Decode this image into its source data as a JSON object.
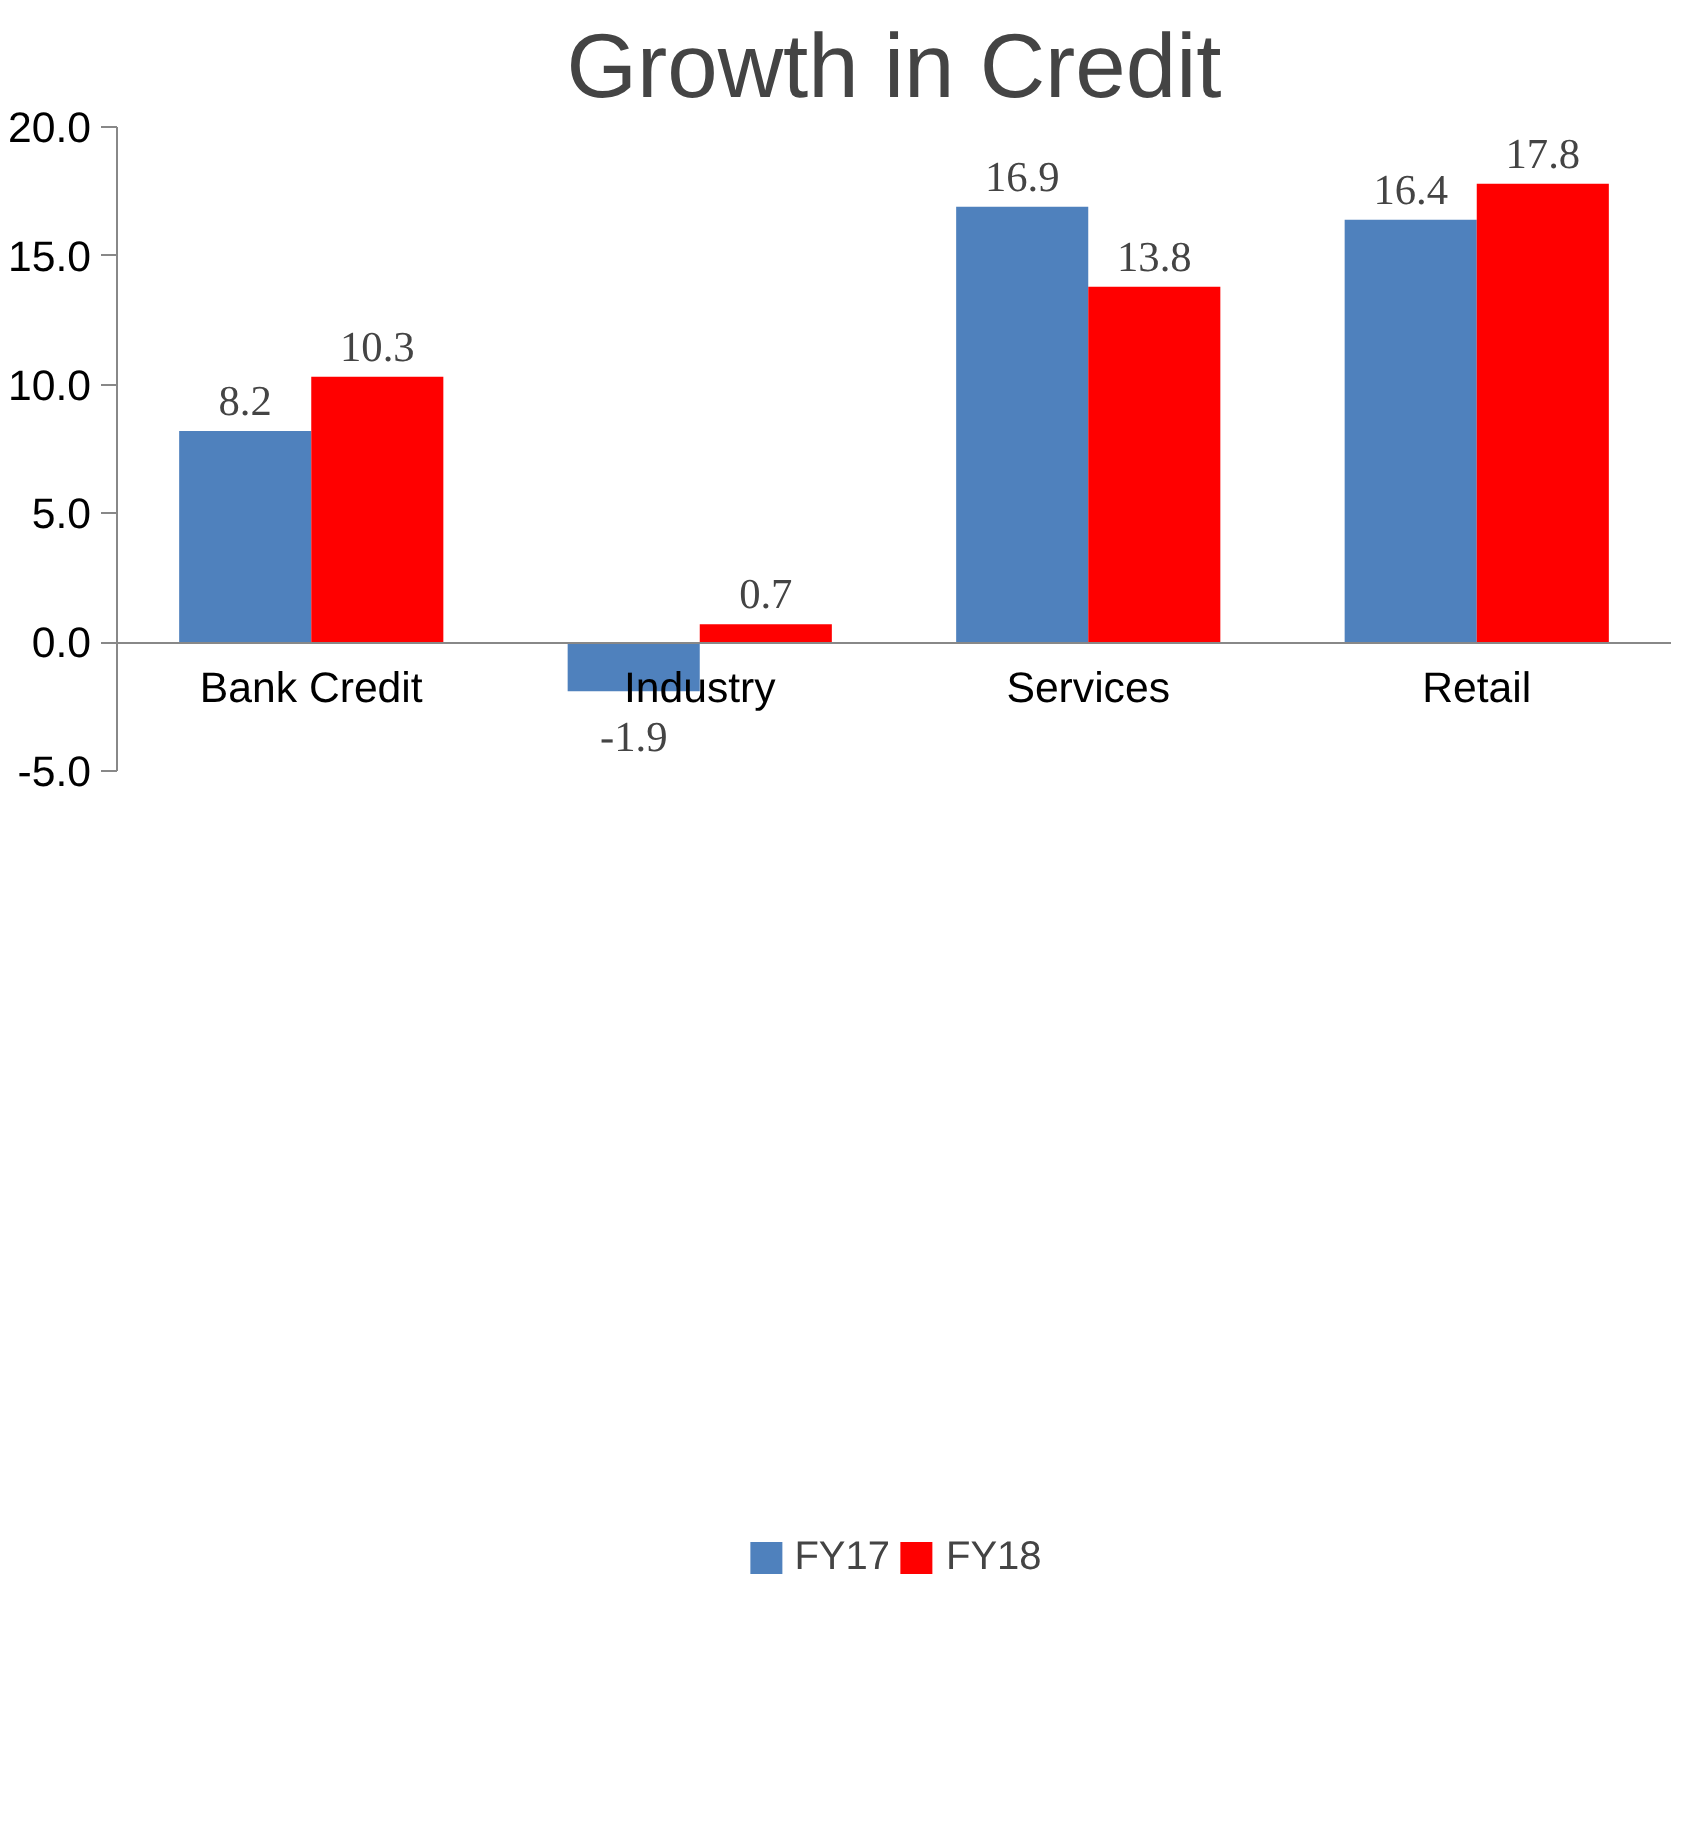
{
  "chart_data": {
    "type": "bar",
    "title": "Growth in Credit",
    "categories": [
      "Bank Credit",
      "Industry",
      "Services",
      "Retail"
    ],
    "series": [
      {
        "name": "FY17",
        "color": "#4f81bd",
        "values": [
          8.2,
          -1.9,
          16.9,
          16.4
        ]
      },
      {
        "name": "FY18",
        "color": "#ff0000",
        "values": [
          10.3,
          0.7,
          13.8,
          17.8
        ]
      }
    ],
    "ylim": [
      -5,
      20
    ],
    "yticks": [
      {
        "value": -5,
        "label": "-5.0"
      },
      {
        "value": 0,
        "label": "0.0"
      },
      {
        "value": 5,
        "label": "5.0"
      },
      {
        "value": 10,
        "label": "10.0"
      },
      {
        "value": 15,
        "label": "15.0"
      },
      {
        "value": 20,
        "label": "20.0"
      }
    ],
    "data_labels": true,
    "legend": "bottom",
    "grid": false
  }
}
